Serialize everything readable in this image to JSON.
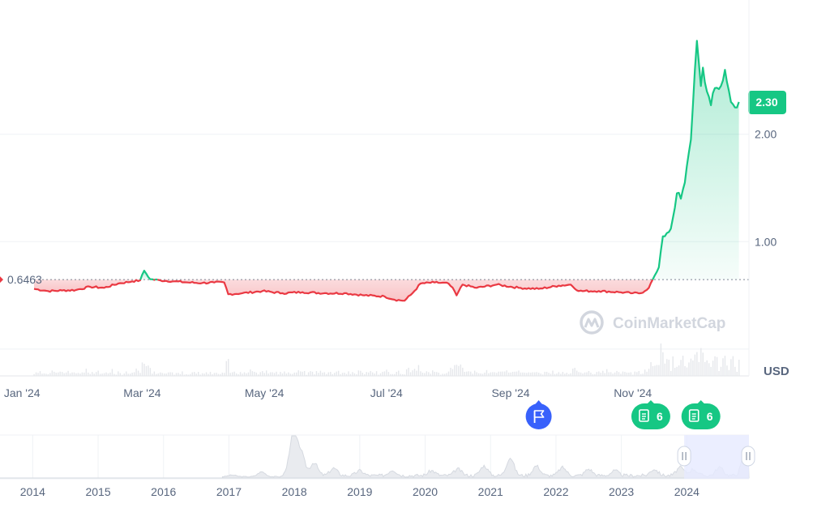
{
  "colors": {
    "up": "#16c784",
    "down": "#ea3943",
    "up_fill": "#16c784",
    "down_fill": "#ea3943",
    "grid": "#eff2f5",
    "axis_text": "#58667e",
    "event_blue": "#3861fb",
    "event_green": "#16c784",
    "navigator_window": "#e6eaff",
    "watermark": "#d2d6de"
  },
  "watermark": "CoinMarketCap",
  "currency_label": "USD",
  "chart_data": {
    "type": "area",
    "title": "",
    "xlabel": "",
    "ylabel": "",
    "y_axis_position": "right",
    "grid": true,
    "reference": {
      "value": 0.6463,
      "label": "0.6463",
      "style": "dotted"
    },
    "last_value": {
      "value": 2.3,
      "label": "2.30"
    },
    "y_ticks": [
      {
        "value": 1.0,
        "label": "1.00"
      },
      {
        "value": 2.0,
        "label": "2.00"
      }
    ],
    "x_ticks": [
      {
        "date": "2024-01-01",
        "label": "Jan '24"
      },
      {
        "date": "2024-03-01",
        "label": "Mar '24"
      },
      {
        "date": "2024-05-01",
        "label": "May '24"
      },
      {
        "date": "2024-07-01",
        "label": "Jul '24"
      },
      {
        "date": "2024-09-01",
        "label": "Sep '24"
      },
      {
        "date": "2024-11-01",
        "label": "Nov '24"
      }
    ],
    "x_range": [
      "2023-12-21",
      "2024-12-29"
    ],
    "y_range": [
      -0.25,
      3.25
    ],
    "series": [
      {
        "points": [
          [
            "2024-01-07",
            0.56
          ],
          [
            "2024-01-14",
            0.54
          ],
          [
            "2024-01-21",
            0.545
          ],
          [
            "2024-01-28",
            0.55
          ],
          [
            "2024-02-04",
            0.58
          ],
          [
            "2024-02-11",
            0.57
          ],
          [
            "2024-02-18",
            0.61
          ],
          [
            "2024-02-25",
            0.63
          ],
          [
            "2024-02-29",
            0.64
          ],
          [
            "2024-03-02",
            0.73
          ],
          [
            "2024-03-05",
            0.65
          ],
          [
            "2024-03-10",
            0.64
          ],
          [
            "2024-03-17",
            0.63
          ],
          [
            "2024-03-24",
            0.62
          ],
          [
            "2024-03-31",
            0.615
          ],
          [
            "2024-04-06",
            0.62
          ],
          [
            "2024-04-11",
            0.62
          ],
          [
            "2024-04-13",
            0.51
          ],
          [
            "2024-04-20",
            0.52
          ],
          [
            "2024-04-30",
            0.54
          ],
          [
            "2024-05-10",
            0.52
          ],
          [
            "2024-05-20",
            0.53
          ],
          [
            "2024-05-31",
            0.52
          ],
          [
            "2024-06-10",
            0.52
          ],
          [
            "2024-06-20",
            0.5
          ],
          [
            "2024-06-30",
            0.49
          ],
          [
            "2024-07-05",
            0.46
          ],
          [
            "2024-07-10",
            0.45
          ],
          [
            "2024-07-14",
            0.52
          ],
          [
            "2024-07-18",
            0.61
          ],
          [
            "2024-07-25",
            0.62
          ],
          [
            "2024-08-01",
            0.61
          ],
          [
            "2024-08-04",
            0.54
          ],
          [
            "2024-08-05",
            0.5
          ],
          [
            "2024-08-08",
            0.6
          ],
          [
            "2024-08-15",
            0.57
          ],
          [
            "2024-08-25",
            0.6
          ],
          [
            "2024-09-05",
            0.57
          ],
          [
            "2024-09-15",
            0.56
          ],
          [
            "2024-09-25",
            0.59
          ],
          [
            "2024-10-01",
            0.6
          ],
          [
            "2024-10-05",
            0.54
          ],
          [
            "2024-10-15",
            0.54
          ],
          [
            "2024-10-25",
            0.53
          ],
          [
            "2024-11-01",
            0.52
          ],
          [
            "2024-11-05",
            0.52
          ],
          [
            "2024-11-09",
            0.57
          ],
          [
            "2024-11-11",
            0.65
          ],
          [
            "2024-11-13",
            0.72
          ],
          [
            "2024-11-14",
            0.76
          ],
          [
            "2024-11-16",
            1.05
          ],
          [
            "2024-11-18",
            1.08
          ],
          [
            "2024-11-20",
            1.12
          ],
          [
            "2024-11-23",
            1.45
          ],
          [
            "2024-11-25",
            1.4
          ],
          [
            "2024-11-27",
            1.55
          ],
          [
            "2024-11-30",
            1.95
          ],
          [
            "2024-12-02",
            2.6
          ],
          [
            "2024-12-03",
            2.87
          ],
          [
            "2024-12-05",
            2.45
          ],
          [
            "2024-12-06",
            2.62
          ],
          [
            "2024-12-08",
            2.4
          ],
          [
            "2024-12-10",
            2.27
          ],
          [
            "2024-12-12",
            2.43
          ],
          [
            "2024-12-14",
            2.42
          ],
          [
            "2024-12-16",
            2.5
          ],
          [
            "2024-12-17",
            2.6
          ],
          [
            "2024-12-20",
            2.3
          ],
          [
            "2024-12-22",
            2.25
          ],
          [
            "2024-12-24",
            2.3
          ]
        ]
      }
    ],
    "events": [
      {
        "date": "2024-09-15",
        "type": "flag",
        "label": ""
      },
      {
        "date": "2024-11-10",
        "type": "news",
        "label": "6"
      },
      {
        "date": "2024-12-05",
        "type": "news",
        "label": "6"
      }
    ],
    "navigator": {
      "x_range": [
        2013.5,
        2024.95
      ],
      "year_labels": [
        "2014",
        "2015",
        "2016",
        "2017",
        "2018",
        "2019",
        "2020",
        "2021",
        "2022",
        "2023",
        "2024"
      ],
      "year_values": [
        2014,
        2015,
        2016,
        2017,
        2018,
        2019,
        2020,
        2021,
        2022,
        2023,
        2024
      ],
      "window": [
        2023.96,
        2024.95
      ]
    }
  }
}
